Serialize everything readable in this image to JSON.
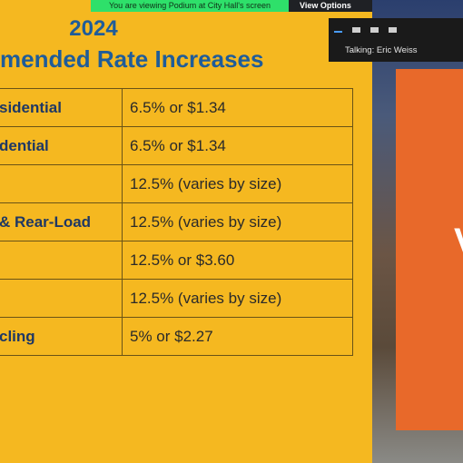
{
  "banner": {
    "text": "You are viewing Podium at City Hall's screen",
    "button": "View Options"
  },
  "speaker_panel": {
    "text": "Talking: Eric Weiss"
  },
  "slide": {
    "year": "2024",
    "heading": "mended Rate Increases",
    "rows": [
      {
        "label": "sidential",
        "rate": "6.5% or $1.34"
      },
      {
        "label": "dential",
        "rate": "6.5% or $1.34"
      },
      {
        "rate": "12.5% (varies by size)"
      },
      {
        "label": "& Rear-Load",
        "rate": "12.5% (varies by size)"
      },
      {
        "rate": "12.5% or $3.60"
      },
      {
        "rate": "12.5% (varies by size)"
      },
      {
        "label": "cling",
        "rate": "5% or $2.27"
      }
    ]
  },
  "side_slide": {
    "letter": "V"
  }
}
